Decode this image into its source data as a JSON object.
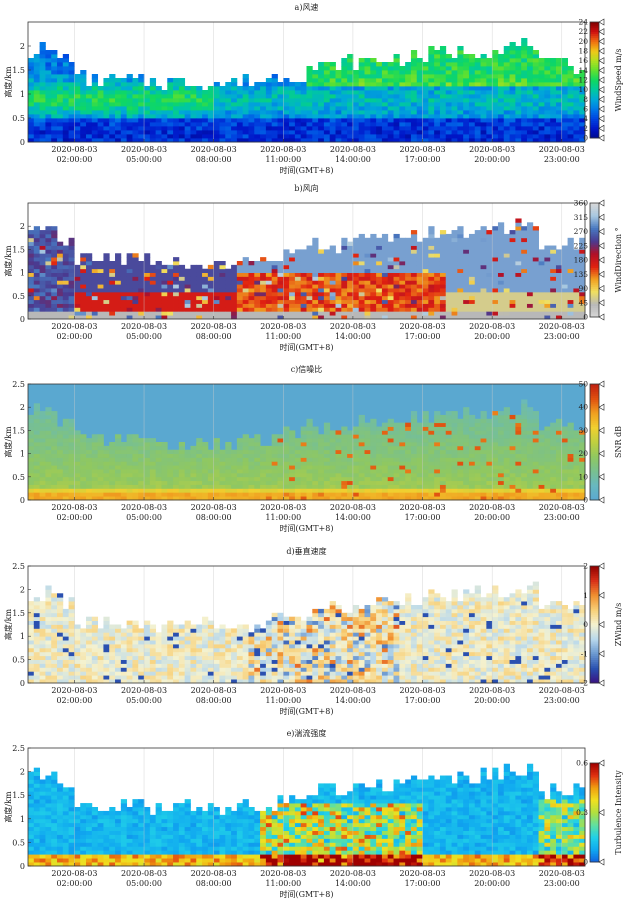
{
  "chart_data": [
    {
      "type": "heatmap",
      "title": "a)风速",
      "ylabel": "高度/km",
      "xlabel": "时间(GMT+8)",
      "x_tick_dates": [
        "2020-08-03",
        "2020-08-03",
        "2020-08-03",
        "2020-08-03",
        "2020-08-03",
        "2020-08-03",
        "2020-08-03",
        "2020-08-03"
      ],
      "x_tick_times": [
        "02:00:00",
        "05:00:00",
        "08:00:00",
        "11:00:00",
        "14:00:00",
        "17:00:00",
        "20:00:00",
        "23:00:00"
      ],
      "x_range_hours": [
        0,
        24
      ],
      "y_ticks": [
        "0",
        "0.5",
        "1",
        "1.5",
        "2"
      ],
      "y_range": [
        0,
        2.5
      ],
      "colorbar": {
        "label": "WindSpeed m/s",
        "range": [
          0,
          24
        ],
        "ticks": [
          "0",
          "2",
          "4",
          "6",
          "8",
          "10",
          "12",
          "14",
          "16",
          "18",
          "20",
          "22",
          "24"
        ],
        "colors": [
          "#000a8f",
          "#0016c8",
          "#0043e0",
          "#0078e8",
          "#00a9d8",
          "#00c8a0",
          "#10d860",
          "#60e030",
          "#b0e020",
          "#f0c818",
          "#f07010",
          "#d01010",
          "#800000"
        ]
      },
      "variable": "windspeed"
    },
    {
      "type": "heatmap",
      "title": "b)风向",
      "ylabel": "高度/km",
      "xlabel": "时间(GMT+8)",
      "x_tick_dates": [
        "2020-08-03",
        "2020-08-03",
        "2020-08-03",
        "2020-08-03",
        "2020-08-03",
        "2020-08-03",
        "2020-08-03",
        "2020-08-03"
      ],
      "x_tick_times": [
        "02:00:00",
        "05:00:00",
        "08:00:00",
        "11:00:00",
        "14:00:00",
        "17:00:00",
        "20:00:00",
        "23:00:00"
      ],
      "x_range_hours": [
        0,
        24
      ],
      "y_ticks": [
        "0",
        "0.5",
        "1",
        "1.5",
        "2"
      ],
      "y_range": [
        0,
        2.5
      ],
      "colorbar": {
        "label": "WindDirection °",
        "range": [
          0,
          360
        ],
        "ticks": [
          "0",
          "45",
          "90",
          "135",
          "180",
          "225",
          "270",
          "315",
          "360"
        ],
        "colors": [
          "#d8d8d8",
          "#b8b8b8",
          "#f0e060",
          "#f0a020",
          "#e02010",
          "#b01028",
          "#4a3a90",
          "#4878c0",
          "#a8c8e0",
          "#d8d8d8"
        ]
      },
      "variable": "winddir"
    },
    {
      "type": "heatmap",
      "title": "c)信噪比",
      "ylabel": "高度/km",
      "xlabel": "时间(GMT+8)",
      "x_tick_dates": [
        "2020-08-03",
        "2020-08-03",
        "2020-08-03",
        "2020-08-03",
        "2020-08-03",
        "2020-08-03",
        "2020-08-03",
        "2020-08-03"
      ],
      "x_tick_times": [
        "02:00:00",
        "05:00:00",
        "08:00:00",
        "11:00:00",
        "14:00:00",
        "17:00:00",
        "20:00:00",
        "23:00:00"
      ],
      "x_range_hours": [
        0,
        24
      ],
      "y_ticks": [
        "0",
        "0.5",
        "1",
        "1.5",
        "2",
        "2.5"
      ],
      "y_range": [
        0,
        2.5
      ],
      "colorbar": {
        "label": "SNR dB",
        "range": [
          0,
          50
        ],
        "ticks": [
          "0",
          "10",
          "20",
          "30",
          "40",
          "50"
        ],
        "colors": [
          "#5aa8d0",
          "#68b8c0",
          "#78c090",
          "#90c860",
          "#c0d040",
          "#f0d030",
          "#f0a020",
          "#e05010",
          "#c02010"
        ]
      },
      "variable": "snr"
    },
    {
      "type": "heatmap",
      "title": "d)垂直速度",
      "ylabel": "高度/km",
      "xlabel": "时间(GMT+8)",
      "x_tick_dates": [
        "2020-08-03",
        "2020-08-03",
        "2020-08-03",
        "2020-08-03",
        "2020-08-03",
        "2020-08-03",
        "2020-08-03",
        "2020-08-03"
      ],
      "x_tick_times": [
        "02:00:00",
        "05:00:00",
        "08:00:00",
        "11:00:00",
        "14:00:00",
        "17:00:00",
        "20:00:00",
        "23:00:00"
      ],
      "x_range_hours": [
        0,
        24
      ],
      "y_ticks": [
        "0",
        "0.5",
        "1",
        "1.5",
        "2",
        "2.5"
      ],
      "y_range": [
        0,
        2.5
      ],
      "colorbar": {
        "label": "ZWind m/s",
        "range": [
          -2,
          2
        ],
        "ticks": [
          "-2",
          "-1",
          "0",
          "1",
          "2"
        ],
        "colors": [
          "#3a1080",
          "#2a50b0",
          "#6a98d0",
          "#b8d8ec",
          "#f4f2d0",
          "#f8d078",
          "#f09030",
          "#d83018",
          "#900000"
        ]
      },
      "variable": "zwind"
    },
    {
      "type": "heatmap",
      "title": "e)湍流强度",
      "ylabel": "高度/km",
      "xlabel": "时间(GMT+8)",
      "x_tick_dates": [
        "2020-08-03",
        "2020-08-03",
        "2020-08-03",
        "2020-08-03",
        "2020-08-03",
        "2020-08-03",
        "2020-08-03",
        "2020-08-03"
      ],
      "x_tick_times": [
        "02:00:00",
        "05:00:00",
        "08:00:00",
        "11:00:00",
        "14:00:00",
        "17:00:00",
        "20:00:00",
        "23:00:00"
      ],
      "x_range_hours": [
        0,
        24
      ],
      "y_ticks": [
        "0",
        "0.5",
        "1",
        "1.5",
        "2",
        "2.5"
      ],
      "y_range": [
        0,
        2.5
      ],
      "colorbar": {
        "label": "Turbulence Intensity",
        "range": [
          0,
          0.6
        ],
        "ticks": [
          "0",
          "0.3",
          "0.6"
        ],
        "colors": [
          "#1060e0",
          "#10a8f0",
          "#20d0e8",
          "#60e0a0",
          "#b0e040",
          "#f0e020",
          "#f0a010",
          "#e03010",
          "#a00000"
        ]
      },
      "variable": "turb"
    }
  ]
}
